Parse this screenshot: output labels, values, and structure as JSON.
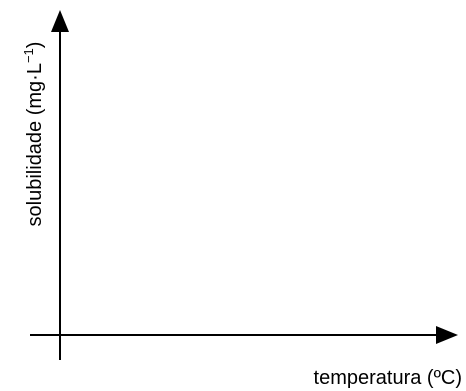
{
  "chart_data": {
    "type": "line",
    "title": "",
    "xlabel": "temperatura (ºC)",
    "ylabel": {
      "main": "solubilidade (mg·L",
      "superscript": "−1",
      "close": ")"
    },
    "series": [],
    "grid": false,
    "legend": "none"
  },
  "colors": {
    "axis": "#000000",
    "background": "#ffffff"
  }
}
